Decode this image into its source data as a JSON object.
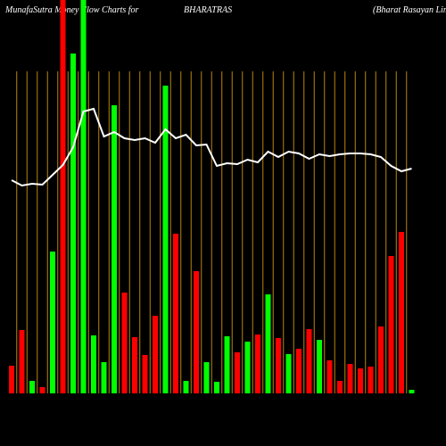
{
  "chart_data": {
    "type": "bar",
    "title": "MunafaSutra  Money Flow  Charts for",
    "symbol": "BHARATRAS",
    "company": "(Bharat Rasayan  Limi",
    "categories": [
      null,
      null,
      null,
      null,
      null,
      null,
      null,
      null,
      null,
      null,
      null,
      null,
      null,
      null,
      null,
      null,
      null,
      null,
      null,
      null,
      null,
      null,
      null,
      null,
      null,
      null,
      null,
      null,
      null,
      null,
      null,
      null,
      null,
      null,
      null,
      null,
      null,
      null,
      null,
      null
    ],
    "values": [
      31,
      71,
      14,
      7,
      159,
      441,
      381,
      441,
      65,
      35,
      323,
      113,
      63,
      43,
      87,
      345,
      179,
      14,
      137,
      35,
      13,
      64,
      46,
      58,
      66,
      111,
      62,
      44,
      50,
      72,
      60,
      37,
      14,
      33,
      28,
      30,
      75,
      154,
      181,
      4
    ],
    "bar_colors": [
      "#ff0000",
      "#ff0000",
      "#00ff00",
      "#ff0000",
      "#00ff00",
      "#ff0000",
      "#00ff00",
      "#00ff00",
      "#00ff00",
      "#00ff00",
      "#00ff00",
      "#ff0000",
      "#ff0000",
      "#ff0000",
      "#ff0000",
      "#00ff00",
      "#ff0000",
      "#00ff00",
      "#ff0000",
      "#00ff00",
      "#00ff00",
      "#00ff00",
      "#ff0000",
      "#00ff00",
      "#ff0000",
      "#00ff00",
      "#ff0000",
      "#00ff00",
      "#ff0000",
      "#ff0000",
      "#00ff00",
      "#ff0000",
      "#ff0000",
      "#ff0000",
      "#ff0000",
      "#ff0000",
      "#ff0000",
      "#ff0000",
      "#ff0000",
      "#00ff00"
    ],
    "line": {
      "color": "#ffffff",
      "values": [
        239,
        233,
        235,
        234,
        245,
        256,
        276,
        316,
        319,
        288,
        293,
        286,
        284,
        286,
        281,
        296,
        286,
        290,
        278,
        279,
        255,
        258,
        257,
        262,
        259,
        271,
        265,
        271,
        269,
        263,
        268,
        266,
        268,
        269,
        269,
        268,
        265,
        255,
        249,
        252
      ]
    },
    "ylim": [
      0,
      441
    ],
    "grid_color": "#b8860b"
  }
}
